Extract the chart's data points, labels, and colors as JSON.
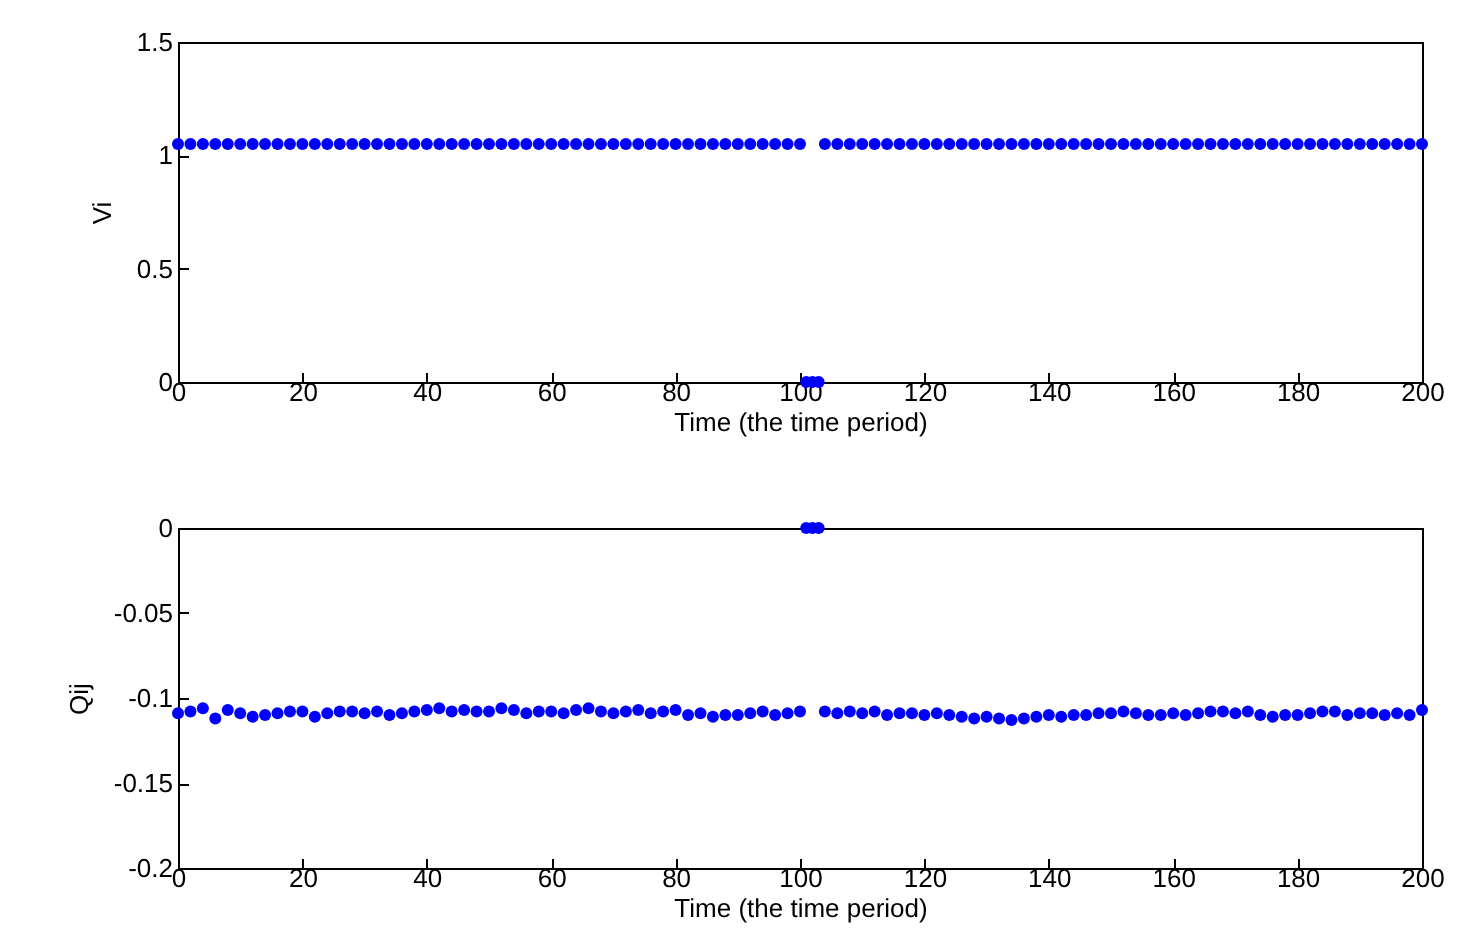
{
  "chart_data": [
    {
      "type": "scatter",
      "xlabel": "Time (the time period)",
      "ylabel": "Vi",
      "xlim": [
        0,
        200
      ],
      "xticks": [
        0,
        20,
        40,
        60,
        80,
        100,
        120,
        140,
        160,
        180,
        200
      ],
      "ylim": [
        0,
        1.5
      ],
      "yticks": [
        0,
        0.5,
        1,
        1.5
      ],
      "marker": "circle",
      "grid": false,
      "legend": false,
      "series": [
        {
          "color": "#0000ff",
          "x": [
            0,
            2,
            4,
            6,
            8,
            10,
            12,
            14,
            16,
            18,
            20,
            22,
            24,
            26,
            28,
            30,
            32,
            34,
            36,
            38,
            40,
            42,
            44,
            46,
            48,
            50,
            52,
            54,
            56,
            58,
            60,
            62,
            64,
            66,
            68,
            70,
            72,
            74,
            76,
            78,
            80,
            82,
            84,
            86,
            88,
            90,
            92,
            94,
            96,
            98,
            100,
            101,
            102,
            103,
            104,
            106,
            108,
            110,
            112,
            114,
            116,
            118,
            120,
            122,
            124,
            126,
            128,
            130,
            132,
            134,
            136,
            138,
            140,
            142,
            144,
            146,
            148,
            150,
            152,
            154,
            156,
            158,
            160,
            162,
            164,
            166,
            168,
            170,
            172,
            174,
            176,
            178,
            180,
            182,
            184,
            186,
            188,
            190,
            192,
            194,
            196,
            198,
            200
          ],
          "values": [
            1.05,
            1.05,
            1.05,
            1.05,
            1.05,
            1.05,
            1.05,
            1.05,
            1.05,
            1.05,
            1.05,
            1.05,
            1.05,
            1.05,
            1.05,
            1.05,
            1.05,
            1.05,
            1.05,
            1.05,
            1.05,
            1.05,
            1.05,
            1.05,
            1.05,
            1.05,
            1.05,
            1.05,
            1.05,
            1.05,
            1.05,
            1.05,
            1.05,
            1.05,
            1.05,
            1.05,
            1.05,
            1.05,
            1.05,
            1.05,
            1.05,
            1.05,
            1.05,
            1.05,
            1.05,
            1.05,
            1.05,
            1.05,
            1.05,
            1.05,
            1.05,
            0,
            0,
            0,
            1.05,
            1.05,
            1.05,
            1.05,
            1.05,
            1.05,
            1.05,
            1.05,
            1.05,
            1.05,
            1.05,
            1.05,
            1.05,
            1.05,
            1.05,
            1.05,
            1.05,
            1.05,
            1.05,
            1.05,
            1.05,
            1.05,
            1.05,
            1.05,
            1.05,
            1.05,
            1.05,
            1.05,
            1.05,
            1.05,
            1.05,
            1.05,
            1.05,
            1.05,
            1.05,
            1.05,
            1.05,
            1.05,
            1.05,
            1.05,
            1.05,
            1.05,
            1.05,
            1.05,
            1.05,
            1.05,
            1.05,
            1.05,
            1.05
          ]
        }
      ]
    },
    {
      "type": "scatter",
      "xlabel": "Time (the time period)",
      "ylabel": "Qij",
      "xlim": [
        0,
        200
      ],
      "xticks": [
        0,
        20,
        40,
        60,
        80,
        100,
        120,
        140,
        160,
        180,
        200
      ],
      "ylim": [
        -0.2,
        0
      ],
      "yticks": [
        -0.2,
        -0.15,
        -0.1,
        -0.05,
        0
      ],
      "marker": "circle",
      "grid": false,
      "legend": false,
      "series": [
        {
          "color": "#0000ff",
          "x": [
            0,
            2,
            4,
            6,
            8,
            10,
            12,
            14,
            16,
            18,
            20,
            22,
            24,
            26,
            28,
            30,
            32,
            34,
            36,
            38,
            40,
            42,
            44,
            46,
            48,
            50,
            52,
            54,
            56,
            58,
            60,
            62,
            64,
            66,
            68,
            70,
            72,
            74,
            76,
            78,
            80,
            82,
            84,
            86,
            88,
            90,
            92,
            94,
            96,
            98,
            100,
            101,
            102,
            103,
            104,
            106,
            108,
            110,
            112,
            114,
            116,
            118,
            120,
            122,
            124,
            126,
            128,
            130,
            132,
            134,
            136,
            138,
            140,
            142,
            144,
            146,
            148,
            150,
            152,
            154,
            156,
            158,
            160,
            162,
            164,
            166,
            168,
            170,
            172,
            174,
            176,
            178,
            180,
            182,
            184,
            186,
            188,
            190,
            192,
            194,
            196,
            198,
            200
          ],
          "values": [
            -0.109,
            -0.108,
            -0.106,
            -0.112,
            -0.107,
            -0.109,
            -0.111,
            -0.11,
            -0.109,
            -0.108,
            -0.108,
            -0.111,
            -0.109,
            -0.108,
            -0.108,
            -0.109,
            -0.108,
            -0.11,
            -0.109,
            -0.108,
            -0.107,
            -0.106,
            -0.108,
            -0.107,
            -0.108,
            -0.108,
            -0.106,
            -0.107,
            -0.109,
            -0.108,
            -0.108,
            -0.109,
            -0.107,
            -0.106,
            -0.108,
            -0.109,
            -0.108,
            -0.107,
            -0.109,
            -0.108,
            -0.107,
            -0.11,
            -0.109,
            -0.111,
            -0.11,
            -0.11,
            -0.109,
            -0.108,
            -0.11,
            -0.109,
            -0.108,
            0,
            0,
            0,
            -0.108,
            -0.109,
            -0.108,
            -0.109,
            -0.108,
            -0.11,
            -0.109,
            -0.109,
            -0.11,
            -0.109,
            -0.11,
            -0.111,
            -0.112,
            -0.111,
            -0.112,
            -0.113,
            -0.112,
            -0.111,
            -0.11,
            -0.111,
            -0.11,
            -0.11,
            -0.109,
            -0.109,
            -0.108,
            -0.109,
            -0.11,
            -0.11,
            -0.109,
            -0.11,
            -0.109,
            -0.108,
            -0.108,
            -0.109,
            -0.108,
            -0.11,
            -0.111,
            -0.11,
            -0.11,
            -0.109,
            -0.108,
            -0.108,
            -0.11,
            -0.109,
            -0.109,
            -0.11,
            -0.109,
            -0.11,
            -0.107
          ]
        }
      ]
    }
  ]
}
